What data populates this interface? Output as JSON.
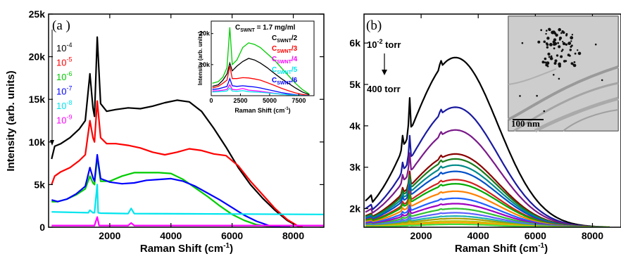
{
  "chart_data": [
    {
      "type": "line",
      "panel_label": "(a )",
      "xlabel": "Raman Shift (cm",
      "xlabel_sup": "-1",
      "xlabel_tail": ")",
      "ylabel": "Intensity (arb. units)",
      "xlim": [
        0,
        9000
      ],
      "ylim": [
        0,
        25000
      ],
      "x_ticks": [
        2000,
        4000,
        6000,
        8000
      ],
      "x_tick_labels": [
        "2000",
        "4000",
        "6000",
        "8000"
      ],
      "y_ticks": [
        0,
        5000,
        10000,
        15000,
        20000,
        25000
      ],
      "y_tick_labels": [
        "0",
        "5k",
        "10k",
        "15k",
        "20k",
        "25k"
      ],
      "legend": [
        {
          "base": "10",
          "exp": "-4",
          "color": "#000000"
        },
        {
          "base": "10",
          "exp": "-5",
          "color": "#ff0000"
        },
        {
          "base": "10",
          "exp": "-6",
          "color": "#00cc00"
        },
        {
          "base": "10",
          "exp": "-7",
          "color": "#0000ff"
        },
        {
          "base": "10",
          "exp": "-8",
          "color": "#00e5ee"
        },
        {
          "base": "10",
          "exp": "-9",
          "color": "#ff00ff"
        }
      ],
      "series": [
        {
          "color": "#000000",
          "x": [
            100,
            200,
            400,
            700,
            1000,
            1200,
            1350,
            1450,
            1500,
            1590,
            1700,
            1900,
            2200,
            2600,
            3000,
            3400,
            3800,
            4200,
            4600,
            5000,
            5400,
            5800,
            6200,
            6600,
            7000,
            7400,
            7800,
            8100,
            8300
          ],
          "y": [
            8000,
            9500,
            9800,
            10500,
            11500,
            12500,
            18000,
            14000,
            13000,
            22300,
            14500,
            13600,
            13800,
            14000,
            13900,
            14200,
            14600,
            14900,
            14700,
            13600,
            11600,
            9400,
            7000,
            5000,
            3400,
            2000,
            800,
            200,
            0
          ]
        },
        {
          "color": "#ff0000",
          "x": [
            100,
            200,
            400,
            700,
            1000,
            1200,
            1350,
            1450,
            1500,
            1590,
            1700,
            1900,
            2200,
            2600,
            3000,
            3400,
            3800,
            4200,
            4600,
            5000,
            5400,
            5800,
            6200,
            6600,
            7000,
            7400,
            7800,
            8100,
            8300
          ],
          "y": [
            5000,
            6000,
            6500,
            7000,
            7800,
            8500,
            12500,
            10500,
            10000,
            14800,
            10500,
            9800,
            9800,
            9600,
            9300,
            8800,
            8500,
            8800,
            9200,
            9000,
            8600,
            8400,
            7200,
            5400,
            3800,
            2200,
            900,
            250,
            0
          ]
        },
        {
          "color": "#00cc00",
          "x": [
            100,
            300,
            600,
            900,
            1200,
            1350,
            1450,
            1500,
            1590,
            1700,
            2000,
            2400,
            2800,
            3200,
            3600,
            4000,
            4400,
            4800,
            5200,
            5600,
            6000,
            6400,
            6800,
            7200,
            7600,
            7900
          ],
          "y": [
            3000,
            3000,
            3300,
            3800,
            4500,
            6000,
            5200,
            5000,
            8200,
            5400,
            5400,
            6000,
            6400,
            6400,
            6400,
            6300,
            5600,
            4600,
            3600,
            2500,
            1500,
            800,
            300,
            100,
            0,
            0
          ]
        },
        {
          "color": "#0000ff",
          "x": [
            100,
            300,
            600,
            900,
            1200,
            1350,
            1450,
            1500,
            1590,
            1700,
            2000,
            2400,
            2800,
            3200,
            3600,
            4000,
            4400,
            4800,
            5200,
            5600,
            6000,
            6400,
            6800,
            7200,
            7600,
            7900
          ],
          "y": [
            3200,
            3000,
            3300,
            3900,
            4800,
            7000,
            5800,
            5400,
            8500,
            5700,
            5300,
            5100,
            5200,
            5500,
            5600,
            5700,
            5400,
            4800,
            4000,
            3200,
            2300,
            1400,
            700,
            200,
            0,
            0
          ]
        },
        {
          "color": "#00e5ee",
          "x": [
            100,
            1300,
            1350,
            1450,
            1500,
            1590,
            1620,
            1700,
            2600,
            2700,
            2800,
            9000
          ],
          "y": [
            1800,
            1700,
            2000,
            1700,
            1700,
            5000,
            1700,
            1650,
            1600,
            2200,
            1600,
            1500
          ]
        },
        {
          "color": "#ff00ff",
          "x": [
            100,
            1500,
            1590,
            1650,
            2600,
            2700,
            2800,
            9000
          ],
          "y": [
            200,
            200,
            1200,
            200,
            200,
            500,
            200,
            200
          ]
        }
      ],
      "inset": {
        "xlabel": "Raman Shift (cm",
        "xlabel_sup": "-1",
        "xlabel_tail": ")",
        "ylabel": "Intensity (arb. units)",
        "xlim": [
          0,
          8800
        ],
        "ylim": [
          0,
          24000
        ],
        "x_ticks": [
          0,
          2500,
          5000,
          7500
        ],
        "x_tick_labels": [
          "0",
          "2500",
          "5000",
          "7500"
        ],
        "y_ticks": [
          10000,
          20000
        ],
        "y_tick_labels": [
          "10k",
          "20k"
        ],
        "legend_header": "C",
        "legend_header_sub": "SWNT",
        "legend_header_tail": " = 1.7 mg/ml",
        "legend": [
          {
            "base": "C",
            "sub": "SWNT",
            "tail": "/2",
            "color": "#000000"
          },
          {
            "base": "C",
            "sub": "SWNT",
            "tail": "/3",
            "color": "#ff0000"
          },
          {
            "base": "C",
            "sub": "SWNT",
            "tail": "/4",
            "color": "#ff00ff"
          },
          {
            "base": "C",
            "sub": "SWNT",
            "tail": "/5",
            "color": "#00e5ee"
          },
          {
            "base": "C",
            "sub": "SWNT",
            "tail": "/6",
            "color": "#0000ff"
          }
        ],
        "series": [
          {
            "color": "#00cc00",
            "x": [
              100,
              600,
              1000,
              1350,
              1590,
              1800,
              2200,
              2700,
              3200,
              3700,
              4200,
              4800,
              5400,
              6000,
              6600,
              7200,
              7800,
              8400
            ],
            "y": [
              4000,
              4500,
              6000,
              9000,
              22000,
              10000,
              11500,
              15500,
              17000,
              16500,
              15500,
              13500,
              11500,
              9000,
              6500,
              4000,
              2000,
              500
            ]
          },
          {
            "color": "#000000",
            "x": [
              100,
              600,
              1000,
              1350,
              1590,
              1800,
              2200,
              2700,
              3200,
              3700,
              4200,
              4800,
              5400,
              6000,
              6600,
              7200,
              7800,
              8400
            ],
            "y": [
              3000,
              3500,
              5000,
              7000,
              10500,
              8000,
              9500,
              11000,
              12000,
              11500,
              10500,
              9000,
              7200,
              5500,
              4000,
              2500,
              1200,
              300
            ]
          },
          {
            "color": "#ff0000",
            "x": [
              100,
              600,
              1000,
              1350,
              1590,
              1800,
              2200,
              2700,
              3200,
              3700,
              4200,
              4800,
              5400,
              6000,
              6600,
              7200,
              7800,
              8400
            ],
            "y": [
              2500,
              3000,
              4000,
              5000,
              9500,
              5500,
              5500,
              5800,
              5700,
              5400,
              5000,
              4200,
              3300,
              2400,
              1600,
              900,
              400,
              100
            ]
          },
          {
            "color": "#0000ff",
            "x": [
              100,
              600,
              1000,
              1350,
              1590,
              1800,
              2200,
              2700,
              3200,
              3700,
              4200,
              4800,
              5400,
              6000,
              6600,
              7200,
              7800,
              8400
            ],
            "y": [
              2000,
              2200,
              2600,
              3000,
              5500,
              3200,
              3000,
              3200,
              3000,
              2800,
              2500,
              2000,
              1500,
              1000,
              600,
              300,
              100,
              0
            ]
          },
          {
            "color": "#ff00ff",
            "x": [
              100,
              600,
              1000,
              1350,
              1590,
              1800,
              2200,
              2700,
              3200,
              3700,
              4200,
              4800,
              5400,
              6000,
              6600,
              7200,
              7800,
              8400
            ],
            "y": [
              1500,
              1600,
              1800,
              2000,
              3500,
              2000,
              1900,
              2300,
              1800,
              1600,
              1400,
              1100,
              800,
              500,
              300,
              150,
              50,
              0
            ]
          },
          {
            "color": "#00e5ee",
            "x": [
              100,
              600,
              1000,
              1350,
              1590,
              1800,
              2200,
              2700,
              3200,
              3700,
              4200,
              4800,
              5400,
              6000,
              6600,
              7200,
              7800,
              8400
            ],
            "y": [
              1200,
              1300,
              1400,
              1500,
              2500,
              1500,
              1400,
              1600,
              1300,
              1200,
              1100,
              900,
              700,
              500,
              300,
              150,
              50,
              0
            ]
          }
        ]
      }
    },
    {
      "type": "line",
      "panel_label": "(b)",
      "xlabel": "Raman Shift (cm",
      "xlabel_sup": "-1",
      "xlabel_tail": ")",
      "xlim": [
        0,
        9000
      ],
      "ylim": [
        1550,
        6700
      ],
      "x_ticks": [
        2000,
        4000,
        6000,
        8000
      ],
      "x_tick_labels": [
        "2000",
        "4000",
        "6000",
        "8000"
      ],
      "y_ticks": [
        2000,
        3000,
        4000,
        5000,
        6000
      ],
      "y_tick_labels": [
        "2k",
        "3k",
        "4k",
        "5k",
        "6k"
      ],
      "pressure_top_base": "10",
      "pressure_top_exp": "-2",
      "pressure_top_unit": " torr",
      "pressure_bottom": "400 torr",
      "inset_scale_bar": "100 nm",
      "peak_positions": [
        1350,
        1590,
        2680
      ],
      "peak_heights": [
        0.08,
        0.22,
        0.05
      ],
      "series": [
        {
          "color": "#000000",
          "peak": 5650
        },
        {
          "color": "#1a1aa0",
          "peak": 4450
        },
        {
          "color": "#7a1a8a",
          "peak": 3900
        },
        {
          "color": "#8b0000",
          "peak": 3320
        },
        {
          "color": "#1a7a1a",
          "peak": 3200
        },
        {
          "color": "#008b8b",
          "peak": 3050
        },
        {
          "color": "#0050c8",
          "peak": 2900
        },
        {
          "color": "#d02020",
          "peak": 2700
        },
        {
          "color": "#00aa00",
          "peak": 2600
        },
        {
          "color": "#ff8000",
          "peak": 2420
        },
        {
          "color": "#2060ff",
          "peak": 2250
        },
        {
          "color": "#a000c0",
          "peak": 2120
        },
        {
          "color": "#30c030",
          "peak": 2000
        },
        {
          "color": "#6060ff",
          "peak": 1900
        },
        {
          "color": "#20b0b0",
          "peak": 1820
        },
        {
          "color": "#a0a000",
          "peak": 1760
        },
        {
          "color": "#c0c000",
          "peak": 1700
        },
        {
          "color": "#ffa000",
          "peak": 1660
        },
        {
          "color": "#40e040",
          "peak": 1620
        }
      ]
    }
  ]
}
